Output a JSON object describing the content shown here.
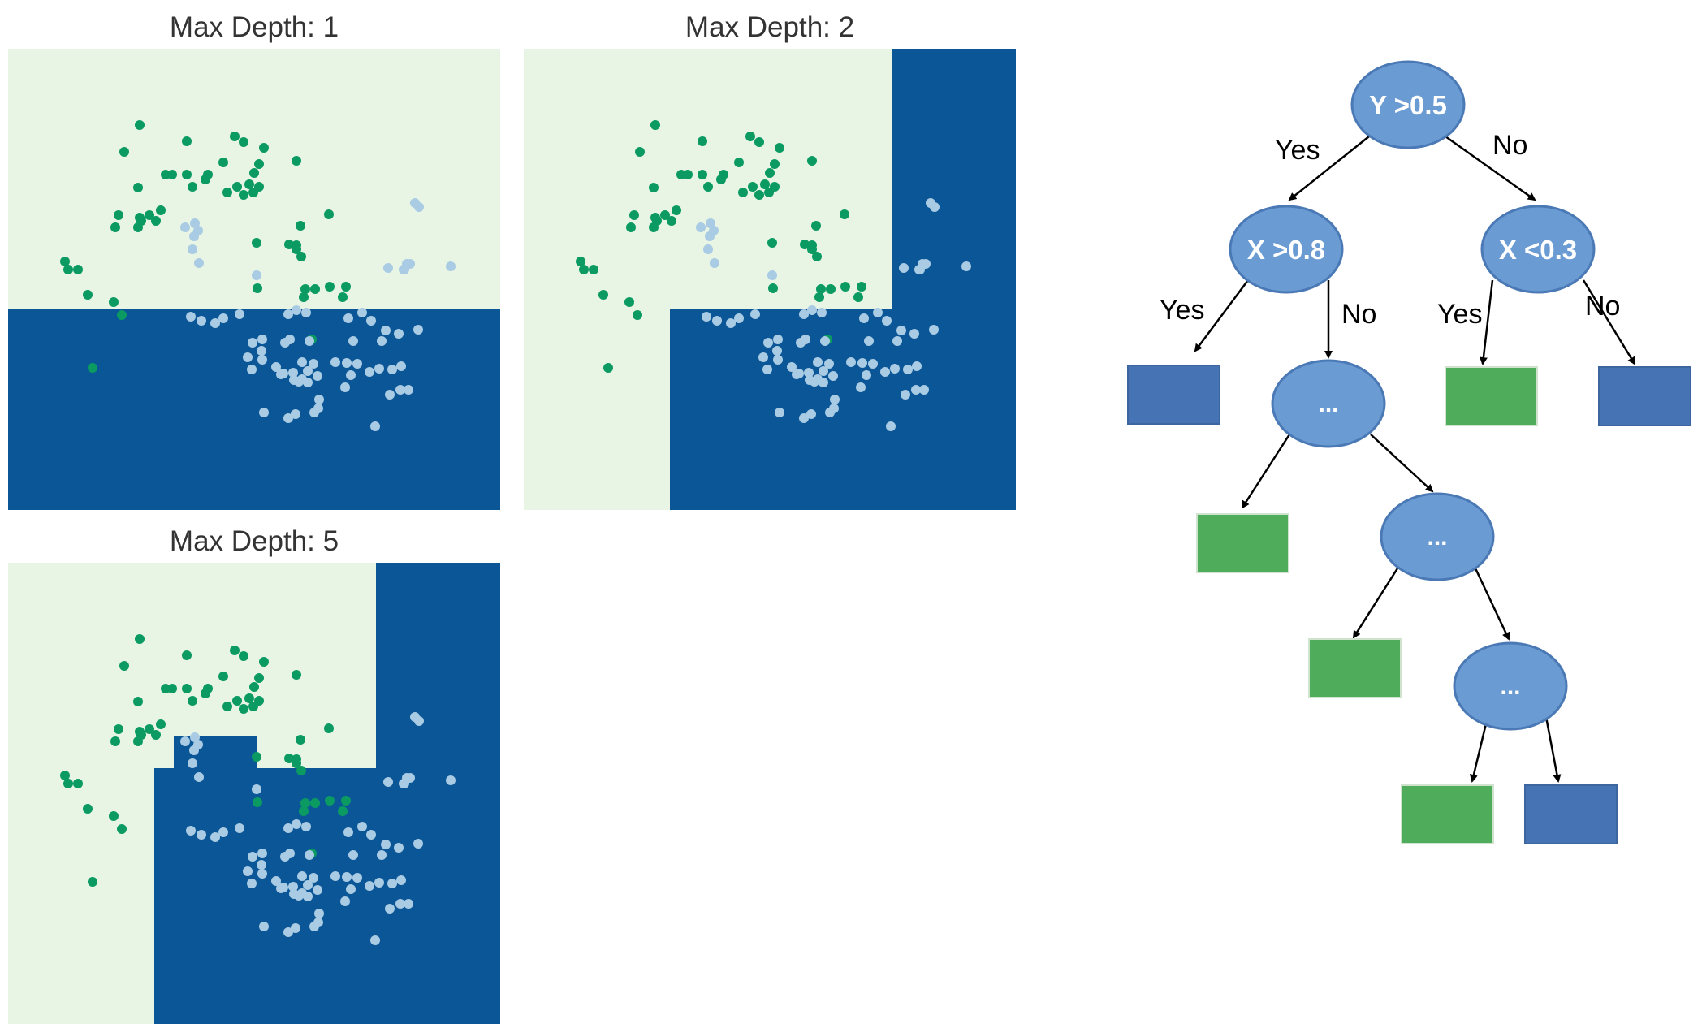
{
  "colors": {
    "region_green": "#e8f5e4",
    "region_blue": "#0b5697",
    "point_green": "#0a9a62",
    "point_blue": "#a9cbe3",
    "node_fill": "#6b9bd3",
    "node_stroke": "#4a79b5",
    "leaf_green": "#4eac5b",
    "leaf_blue": "#4573b4",
    "arrow": "#000000"
  },
  "panels": [
    {
      "title": "Max Depth: 1"
    },
    {
      "title": "Max Depth: 2"
    },
    {
      "title": "Max Depth: 5"
    }
  ],
  "tree": {
    "nodes": {
      "root": "Y >0.5",
      "left": "X >0.8",
      "right": "X <0.3",
      "n1": "...",
      "n2": "...",
      "n3": "..."
    },
    "edge_labels": {
      "root_yes": "Yes",
      "root_no": "No",
      "left_yes": "Yes",
      "left_no": "No",
      "right_yes": "Yes",
      "right_no": "No"
    }
  }
}
